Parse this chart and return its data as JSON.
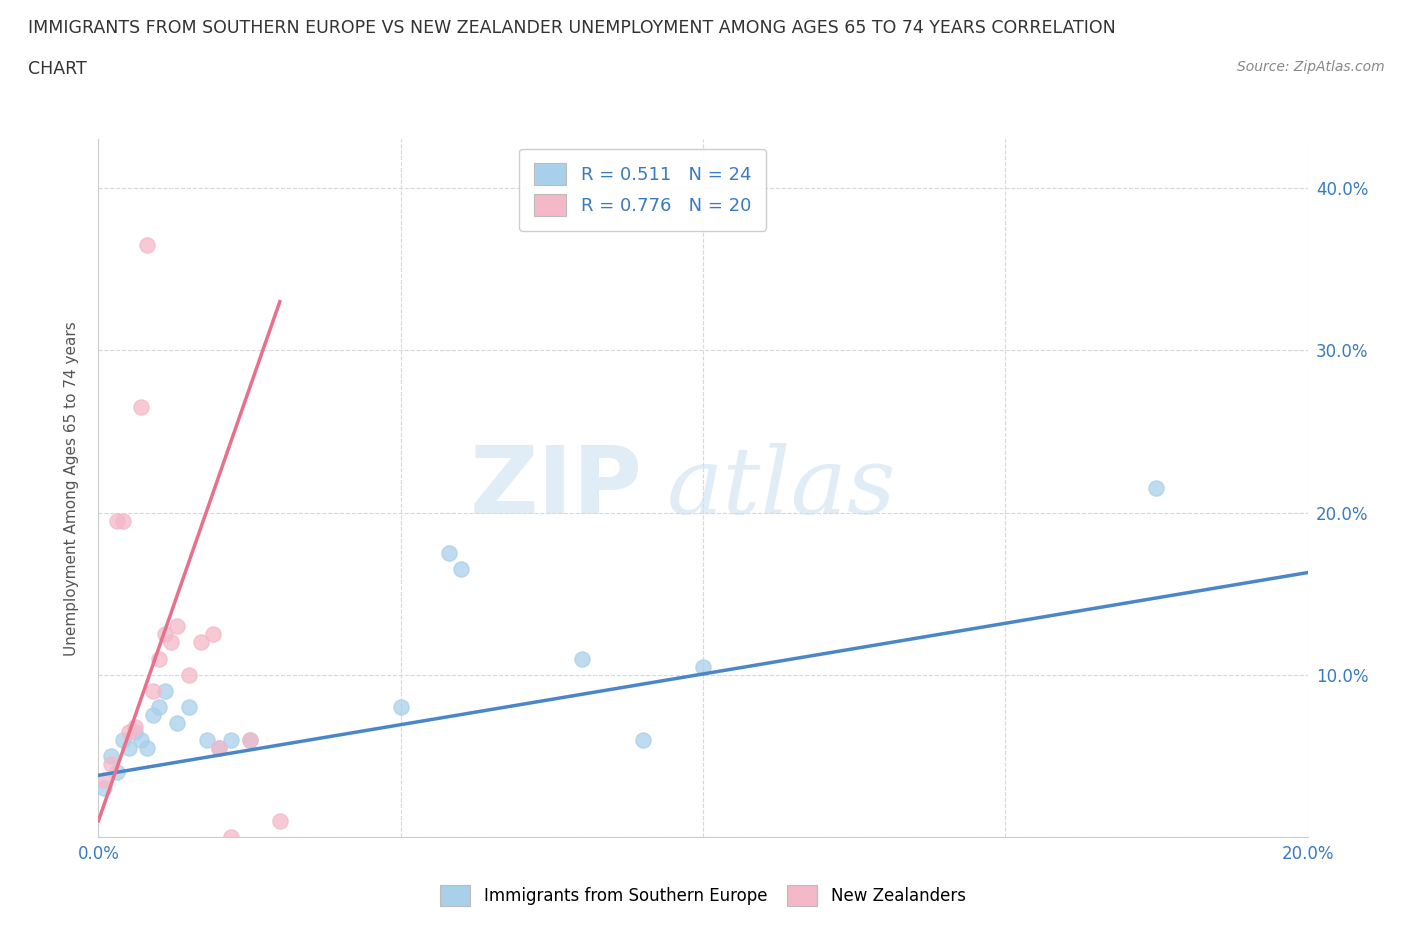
{
  "title_line1": "IMMIGRANTS FROM SOUTHERN EUROPE VS NEW ZEALANDER UNEMPLOYMENT AMONG AGES 65 TO 74 YEARS CORRELATION",
  "title_line2": "CHART",
  "source": "Source: ZipAtlas.com",
  "ylabel": "Unemployment Among Ages 65 to 74 years",
  "xlim": [
    0.0,
    0.2
  ],
  "ylim": [
    0.0,
    0.43
  ],
  "xticks": [
    0.0,
    0.05,
    0.1,
    0.15,
    0.2
  ],
  "yticks": [
    0.0,
    0.1,
    0.2,
    0.3,
    0.4
  ],
  "blue_R": 0.511,
  "blue_N": 24,
  "pink_R": 0.776,
  "pink_N": 20,
  "blue_color": "#a8d0ea",
  "pink_color": "#f4b8c8",
  "blue_line_color": "#4a86c8",
  "pink_line_color": "#e8708a",
  "watermark_zip": "ZIP",
  "watermark_atlas": "atlas",
  "blue_scatter_x": [
    0.001,
    0.002,
    0.003,
    0.004,
    0.005,
    0.006,
    0.007,
    0.008,
    0.009,
    0.01,
    0.011,
    0.013,
    0.015,
    0.018,
    0.02,
    0.022,
    0.025,
    0.05,
    0.058,
    0.06,
    0.08,
    0.09,
    0.1,
    0.175
  ],
  "blue_scatter_y": [
    0.03,
    0.05,
    0.04,
    0.06,
    0.055,
    0.065,
    0.06,
    0.055,
    0.075,
    0.08,
    0.09,
    0.07,
    0.08,
    0.06,
    0.055,
    0.06,
    0.06,
    0.08,
    0.175,
    0.165,
    0.11,
    0.06,
    0.105,
    0.215
  ],
  "pink_scatter_x": [
    0.001,
    0.002,
    0.003,
    0.004,
    0.005,
    0.006,
    0.007,
    0.008,
    0.009,
    0.01,
    0.011,
    0.012,
    0.013,
    0.015,
    0.017,
    0.019,
    0.02,
    0.022,
    0.025,
    0.03
  ],
  "pink_scatter_y": [
    0.035,
    0.045,
    0.195,
    0.195,
    0.065,
    0.068,
    0.265,
    0.365,
    0.09,
    0.11,
    0.125,
    0.12,
    0.13,
    0.1,
    0.12,
    0.125,
    0.055,
    0.0,
    0.06,
    0.01
  ],
  "blue_trend_x": [
    0.0,
    0.2
  ],
  "blue_trend_y": [
    0.038,
    0.163
  ],
  "pink_trend_x": [
    0.0,
    0.03
  ],
  "pink_trend_y": [
    0.01,
    0.33
  ],
  "background_color": "#ffffff",
  "grid_color": "#d8d8d8"
}
